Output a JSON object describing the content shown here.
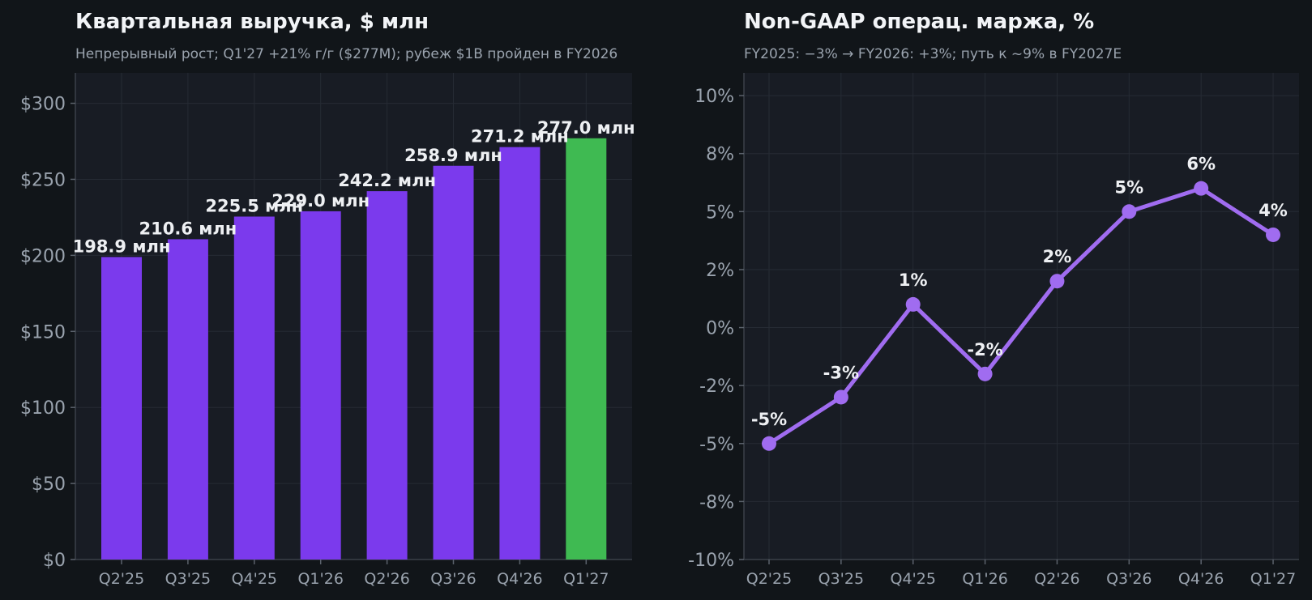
{
  "colors": {
    "page_bg": "#111519",
    "panel_bg": "#181c24",
    "grid": "#262b34",
    "bar": "#7b3aed",
    "bar_highlight": "#3fba52",
    "line": "#a06cf0",
    "text": "#eef0f3",
    "muted": "#9aa3ae"
  },
  "chart_data": [
    {
      "type": "bar",
      "title": "Квартальная выручка, $ млн",
      "subtitle": "Непрерывный рост; Q1'27 +21% г/г ($277M); рубеж $1B пройден в FY2026",
      "categories": [
        "Q2'25",
        "Q3'25",
        "Q4'25",
        "Q1'26",
        "Q2'26",
        "Q3'26",
        "Q4'26",
        "Q1'27"
      ],
      "values": [
        198.9,
        210.6,
        225.5,
        229.0,
        242.2,
        258.9,
        271.2,
        277.0
      ],
      "data_labels": [
        "198.9 млн",
        "210.6 млн",
        "225.5 млн",
        "229.0 млн",
        "242.2 млн",
        "258.9 млн",
        "271.2 млн",
        "277.0 млн"
      ],
      "highlight_index": 7,
      "yticks": [
        0,
        50,
        100,
        150,
        200,
        250,
        300
      ],
      "ytick_labels": [
        "$0",
        "$50",
        "$100",
        "$150",
        "$200",
        "$250",
        "$300"
      ],
      "ylim": [
        0,
        320
      ],
      "grid": true
    },
    {
      "type": "line",
      "title": "Non-GAAP операц. маржа, %",
      "subtitle": "FY2025: −3% → FY2026: +3%; путь к ~9% в FY2027E",
      "categories": [
        "Q2'25",
        "Q3'25",
        "Q4'25",
        "Q1'26",
        "Q2'26",
        "Q3'26",
        "Q4'26",
        "Q1'27"
      ],
      "values": [
        -5.0,
        -3.0,
        1.0,
        -2.0,
        2.0,
        5.0,
        6.0,
        4.0
      ],
      "data_labels": [
        "-5%",
        "-3%",
        "1%",
        "-2%",
        "2%",
        "5%",
        "6%",
        "4%"
      ],
      "yticks": [
        -10,
        -7.5,
        -5,
        -2.5,
        0,
        2.5,
        5,
        7.5,
        10
      ],
      "ytick_labels": [
        "-10%",
        "-8%",
        "-5%",
        "-2%",
        "0%",
        "2%",
        "5%",
        "8%",
        "10%"
      ],
      "ylim": [
        -10,
        10.98
      ],
      "grid": true
    }
  ]
}
